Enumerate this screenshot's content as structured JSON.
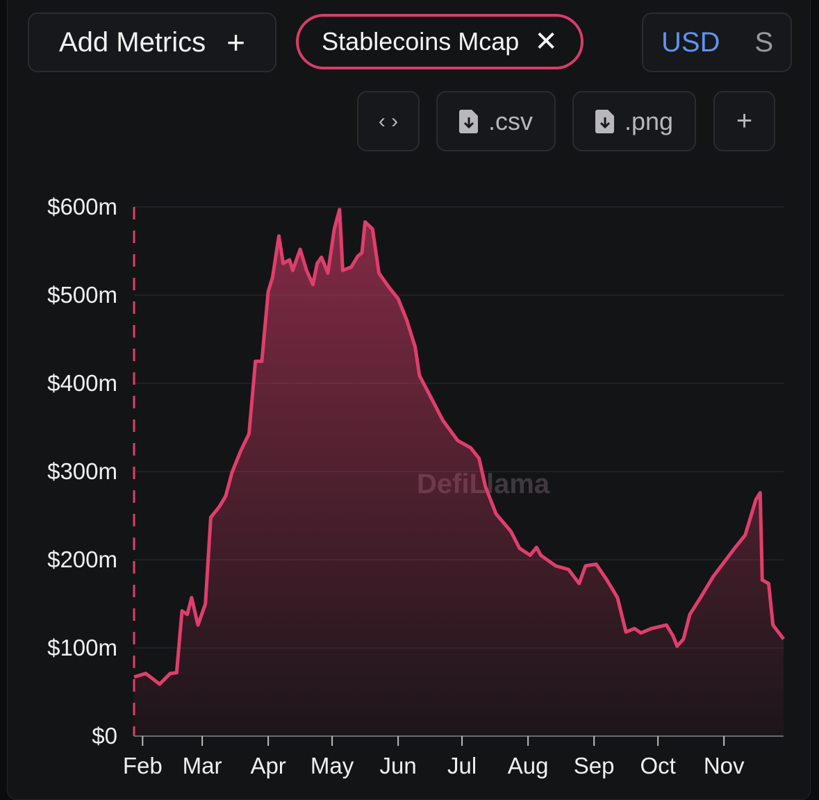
{
  "toolbar": {
    "add_metrics_label": "Add Metrics",
    "add_metrics_icon": "plus-icon",
    "active_metric": "Stablecoins Mcap",
    "remove_icon": "close-icon",
    "denomination_active": "USD",
    "denomination_other": "S",
    "embed_icon": "code-icon",
    "csv_label": ".csv",
    "png_label": ".png",
    "download_icon": "file-download-icon",
    "add_chart_icon": "plus-icon"
  },
  "watermark": "DefiLlama",
  "colors": {
    "line": "#e03e6c",
    "accent": "#5f93f0",
    "background": "#131416"
  },
  "chart_data": {
    "type": "area",
    "title": "",
    "xlabel": "",
    "ylabel": "",
    "series_name": "Stablecoins Mcap",
    "x_unit": "days since Feb 1",
    "ylim": [
      0,
      600
    ],
    "y_ticks": [
      0,
      100,
      200,
      300,
      400,
      500,
      600
    ],
    "y_tick_labels": [
      "$0",
      "$100m",
      "$200m",
      "$300m",
      "$400m",
      "$500m",
      "$600m"
    ],
    "x_ticks": [
      0,
      28,
      59,
      89,
      120,
      150,
      181,
      212,
      242,
      273
    ],
    "x_tick_labels": [
      "Feb",
      "Mar",
      "Apr",
      "May",
      "Jun",
      "Jul",
      "Aug",
      "Sep",
      "Oct",
      "Nov"
    ],
    "grid": true,
    "x": [
      -4,
      1.5,
      8,
      13,
      16,
      18.5,
      21,
      23,
      26,
      29.5,
      32,
      36,
      39,
      42,
      46,
      50,
      53,
      56,
      59,
      61,
      64,
      66,
      69,
      70.5,
      74,
      77,
      80,
      82,
      84,
      87,
      90,
      92.5,
      94,
      98,
      101,
      103,
      104.5,
      108,
      111,
      116,
      120,
      124,
      128,
      130,
      135,
      141,
      148,
      154,
      158,
      161,
      166,
      173,
      177,
      182,
      185,
      187,
      194,
      200,
      205,
      208,
      213,
      218,
      223,
      227,
      231,
      234,
      239,
      246,
      249,
      251,
      254,
      257,
      262,
      268,
      273,
      278,
      283,
      288,
      290,
      291,
      294,
      296,
      301
    ],
    "values": [
      67,
      71,
      59,
      71,
      72,
      142,
      138,
      157,
      126,
      150,
      248,
      260,
      272,
      299,
      323,
      343,
      425,
      425,
      504,
      520,
      567,
      536,
      540,
      528,
      552,
      528,
      512,
      536,
      543,
      525,
      575,
      597,
      528,
      532,
      544,
      548,
      583,
      575,
      525,
      508,
      496,
      472,
      441,
      409,
      386,
      358,
      335,
      327,
      315,
      283,
      252,
      232,
      213,
      205,
      214,
      205,
      193,
      189,
      173,
      193,
      195,
      177,
      157,
      118,
      122,
      117,
      122,
      126,
      114,
      102,
      110,
      138,
      157,
      181,
      197,
      213,
      228,
      268,
      276,
      177,
      173,
      126,
      110
    ]
  }
}
